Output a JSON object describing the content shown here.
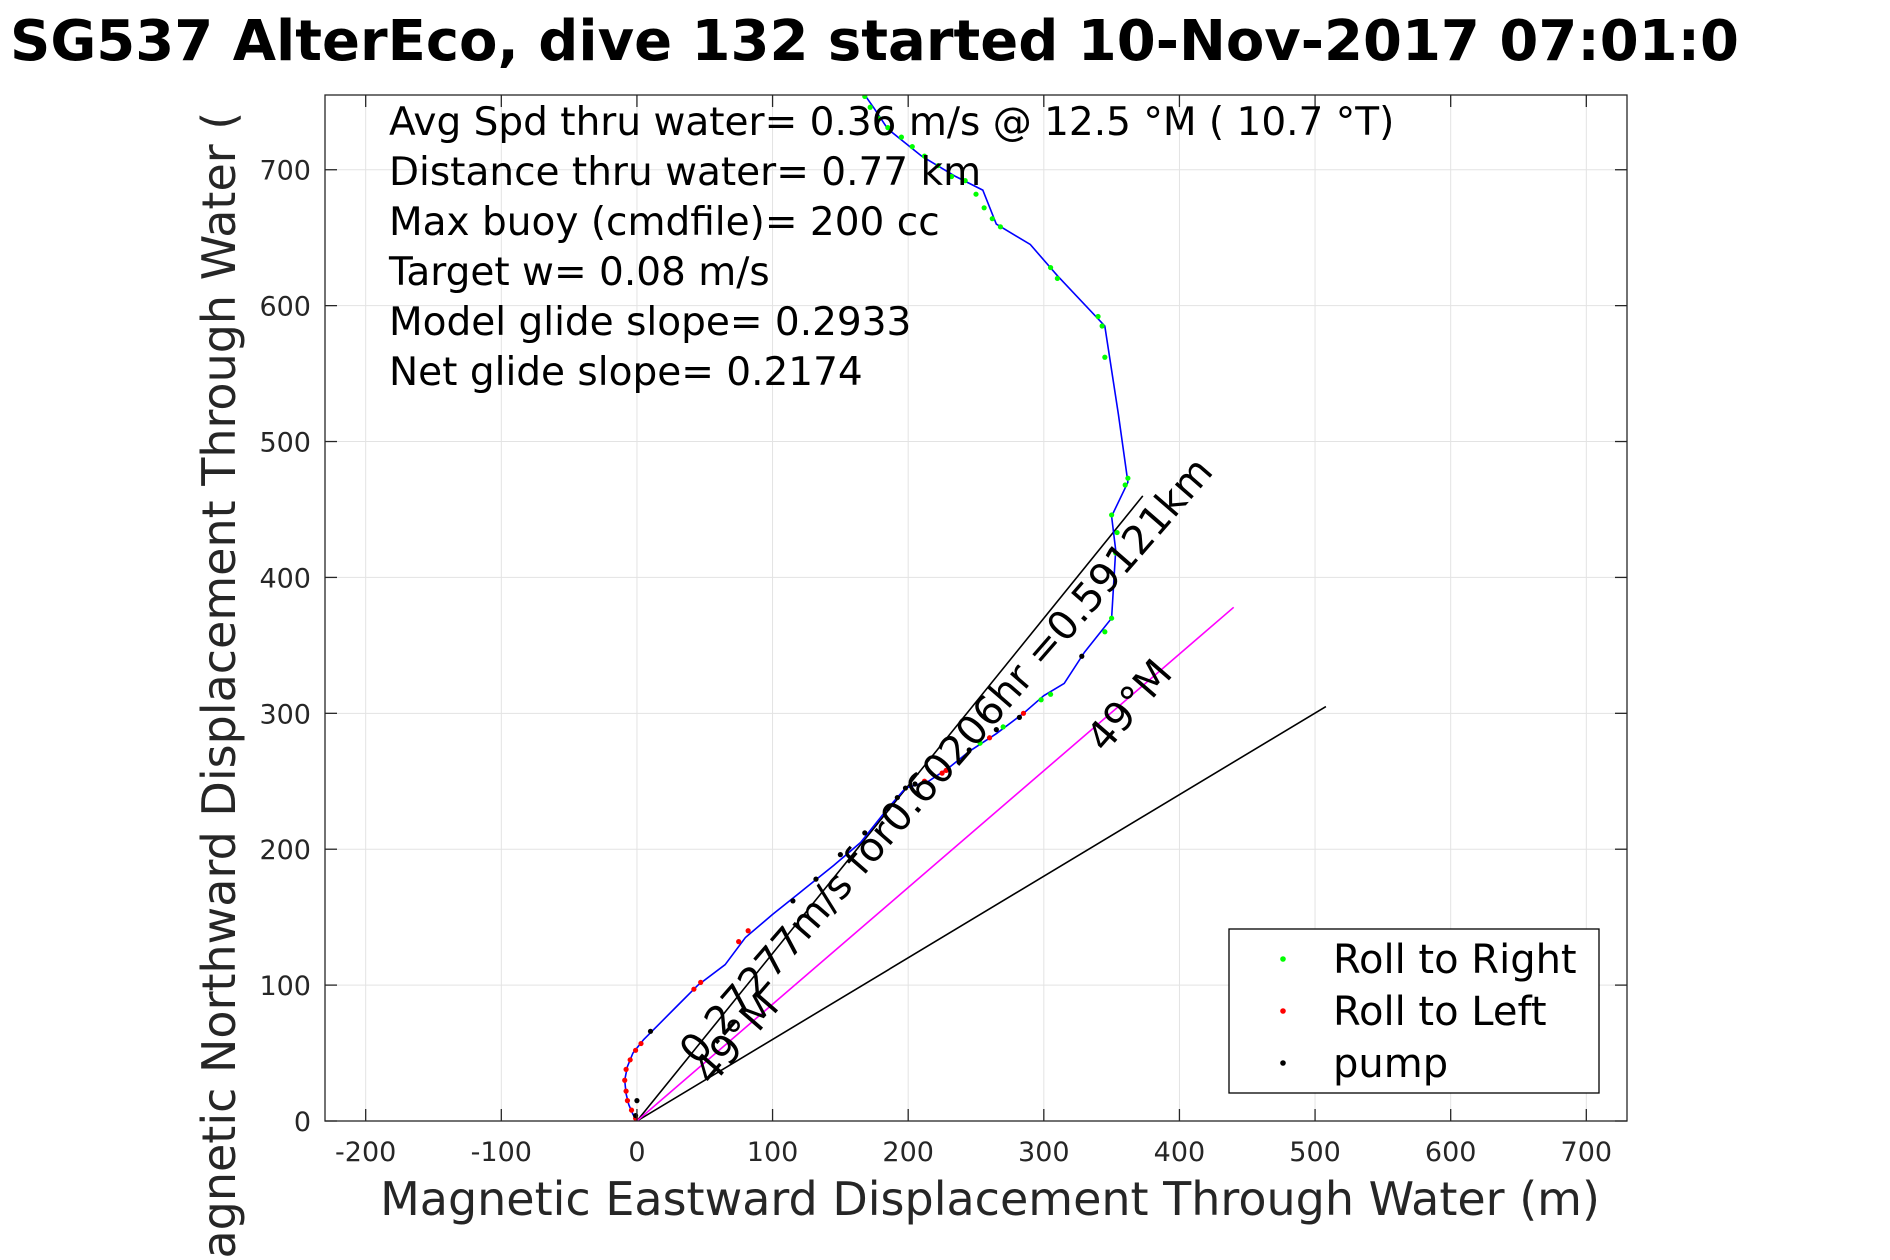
{
  "chart_data": {
    "type": "line",
    "title": "SG537 AlterEco, dive 132 started 10-Nov-2017 07:01:0",
    "xlabel": "Magnetic Eastward Displacement Through Water (m)",
    "ylabel": "Magnetic Northward Displacement Through Water (",
    "xlim": [
      -230,
      730
    ],
    "ylim": [
      0,
      755
    ],
    "xticks": [
      -200,
      -100,
      0,
      100,
      200,
      300,
      400,
      500,
      600,
      700
    ],
    "yticks": [
      0,
      100,
      200,
      300,
      400,
      500,
      600,
      700
    ],
    "grid": true,
    "legend_position": "bottom-right",
    "info_lines": [
      "Avg Spd thru water=  0.36 m/s @  12.5 °M ( 10.7 °T)",
      "Distance thru water=  0.77 km",
      "Max buoy (cmdfile)= 200 cc",
      "Target w= 0.08 m/s",
      "Model glide slope= 0.2933",
      "Net glide slope= 0.2174"
    ],
    "colors": {
      "track": "#0000ff",
      "roll_right": "#00ff00",
      "roll_left": "#ff0000",
      "pump": "#000000",
      "current": "#ff00ff",
      "reference": "#000000",
      "grid": "#e3e3e3",
      "axes": "#262626"
    },
    "track": [
      {
        "x": 0,
        "y": 0
      },
      {
        "x": -3,
        "y": 5
      },
      {
        "x": -6,
        "y": 12
      },
      {
        "x": -8,
        "y": 20
      },
      {
        "x": -9,
        "y": 30
      },
      {
        "x": -7,
        "y": 40
      },
      {
        "x": -3,
        "y": 50
      },
      {
        "x": 5,
        "y": 60
      },
      {
        "x": 15,
        "y": 70
      },
      {
        "x": 30,
        "y": 85
      },
      {
        "x": 45,
        "y": 100
      },
      {
        "x": 65,
        "y": 115
      },
      {
        "x": 80,
        "y": 135
      },
      {
        "x": 100,
        "y": 152
      },
      {
        "x": 120,
        "y": 168
      },
      {
        "x": 145,
        "y": 188
      },
      {
        "x": 165,
        "y": 205
      },
      {
        "x": 185,
        "y": 230
      },
      {
        "x": 198,
        "y": 245
      },
      {
        "x": 215,
        "y": 250
      },
      {
        "x": 230,
        "y": 260
      },
      {
        "x": 245,
        "y": 272
      },
      {
        "x": 265,
        "y": 285
      },
      {
        "x": 285,
        "y": 300
      },
      {
        "x": 300,
        "y": 313
      },
      {
        "x": 315,
        "y": 322
      },
      {
        "x": 330,
        "y": 345
      },
      {
        "x": 350,
        "y": 370
      },
      {
        "x": 353,
        "y": 420
      },
      {
        "x": 350,
        "y": 445
      },
      {
        "x": 362,
        "y": 470
      },
      {
        "x": 355,
        "y": 520
      },
      {
        "x": 345,
        "y": 585
      },
      {
        "x": 310,
        "y": 622
      },
      {
        "x": 290,
        "y": 645
      },
      {
        "x": 265,
        "y": 660
      },
      {
        "x": 255,
        "y": 685
      },
      {
        "x": 235,
        "y": 695
      },
      {
        "x": 210,
        "y": 710
      },
      {
        "x": 185,
        "y": 730
      },
      {
        "x": 175,
        "y": 745
      },
      {
        "x": 168,
        "y": 755
      }
    ],
    "roll_right_points": [
      {
        "x": 168,
        "y": 754
      },
      {
        "x": 172,
        "y": 746
      },
      {
        "x": 178,
        "y": 738
      },
      {
        "x": 185,
        "y": 731
      },
      {
        "x": 195,
        "y": 724
      },
      {
        "x": 203,
        "y": 717
      },
      {
        "x": 212,
        "y": 710
      },
      {
        "x": 222,
        "y": 703
      },
      {
        "x": 232,
        "y": 695
      },
      {
        "x": 242,
        "y": 692
      },
      {
        "x": 250,
        "y": 682
      },
      {
        "x": 256,
        "y": 672
      },
      {
        "x": 262,
        "y": 664
      },
      {
        "x": 268,
        "y": 658
      },
      {
        "x": 305,
        "y": 628
      },
      {
        "x": 310,
        "y": 620
      },
      {
        "x": 340,
        "y": 592
      },
      {
        "x": 343,
        "y": 585
      },
      {
        "x": 345,
        "y": 562
      },
      {
        "x": 362,
        "y": 473
      },
      {
        "x": 360,
        "y": 468
      },
      {
        "x": 350,
        "y": 446
      },
      {
        "x": 354,
        "y": 433
      },
      {
        "x": 353,
        "y": 418
      },
      {
        "x": 350,
        "y": 370
      },
      {
        "x": 345,
        "y": 360
      },
      {
        "x": 305,
        "y": 314
      },
      {
        "x": 298,
        "y": 310
      },
      {
        "x": 270,
        "y": 290
      },
      {
        "x": 253,
        "y": 278
      }
    ],
    "roll_left_points": [
      {
        "x": -1,
        "y": 2
      },
      {
        "x": -4,
        "y": 8
      },
      {
        "x": -7,
        "y": 15
      },
      {
        "x": -8,
        "y": 22
      },
      {
        "x": -9,
        "y": 30
      },
      {
        "x": -8,
        "y": 38
      },
      {
        "x": -5,
        "y": 45
      },
      {
        "x": -1,
        "y": 52
      },
      {
        "x": 3,
        "y": 57
      },
      {
        "x": 42,
        "y": 97
      },
      {
        "x": 47,
        "y": 102
      },
      {
        "x": 75,
        "y": 132
      },
      {
        "x": 82,
        "y": 140
      },
      {
        "x": 212,
        "y": 250
      },
      {
        "x": 225,
        "y": 256
      },
      {
        "x": 228,
        "y": 258
      },
      {
        "x": 260,
        "y": 282
      },
      {
        "x": 285,
        "y": 300
      }
    ],
    "pump_points": [
      {
        "x": -1,
        "y": 4
      },
      {
        "x": 0,
        "y": 15
      },
      {
        "x": 10,
        "y": 66
      },
      {
        "x": 115,
        "y": 162
      },
      {
        "x": 132,
        "y": 178
      },
      {
        "x": 150,
        "y": 196
      },
      {
        "x": 168,
        "y": 212
      },
      {
        "x": 185,
        "y": 230
      },
      {
        "x": 192,
        "y": 238
      },
      {
        "x": 198,
        "y": 245
      },
      {
        "x": 205,
        "y": 248
      },
      {
        "x": 245,
        "y": 273
      },
      {
        "x": 265,
        "y": 288
      },
      {
        "x": 282,
        "y": 297
      },
      {
        "x": 328,
        "y": 342
      }
    ],
    "reference_lines": [
      {
        "x": [
          0,
          373
        ],
        "y": [
          0,
          460
        ]
      },
      {
        "x": [
          0,
          508
        ],
        "y": [
          0,
          305
        ]
      }
    ],
    "current_line": {
      "x": [
        0,
        440
      ],
      "y": [
        0,
        378
      ]
    },
    "annotations": [
      {
        "text": "0.27277m/s for0.60206hr =0.59121km",
        "x": 45,
        "y": 40,
        "angle_deg": 49
      },
      {
        "text": "49°M",
        "x": 345,
        "y": 270,
        "angle_deg": 49
      },
      {
        "text": "49°M",
        "x": 55,
        "y": 25,
        "angle_deg": 49
      }
    ],
    "legend": [
      {
        "label": "Roll to Right",
        "color": "#00ff00"
      },
      {
        "label": "Roll to Left",
        "color": "#ff0000"
      },
      {
        "label": "pump",
        "color": "#000000"
      }
    ]
  }
}
